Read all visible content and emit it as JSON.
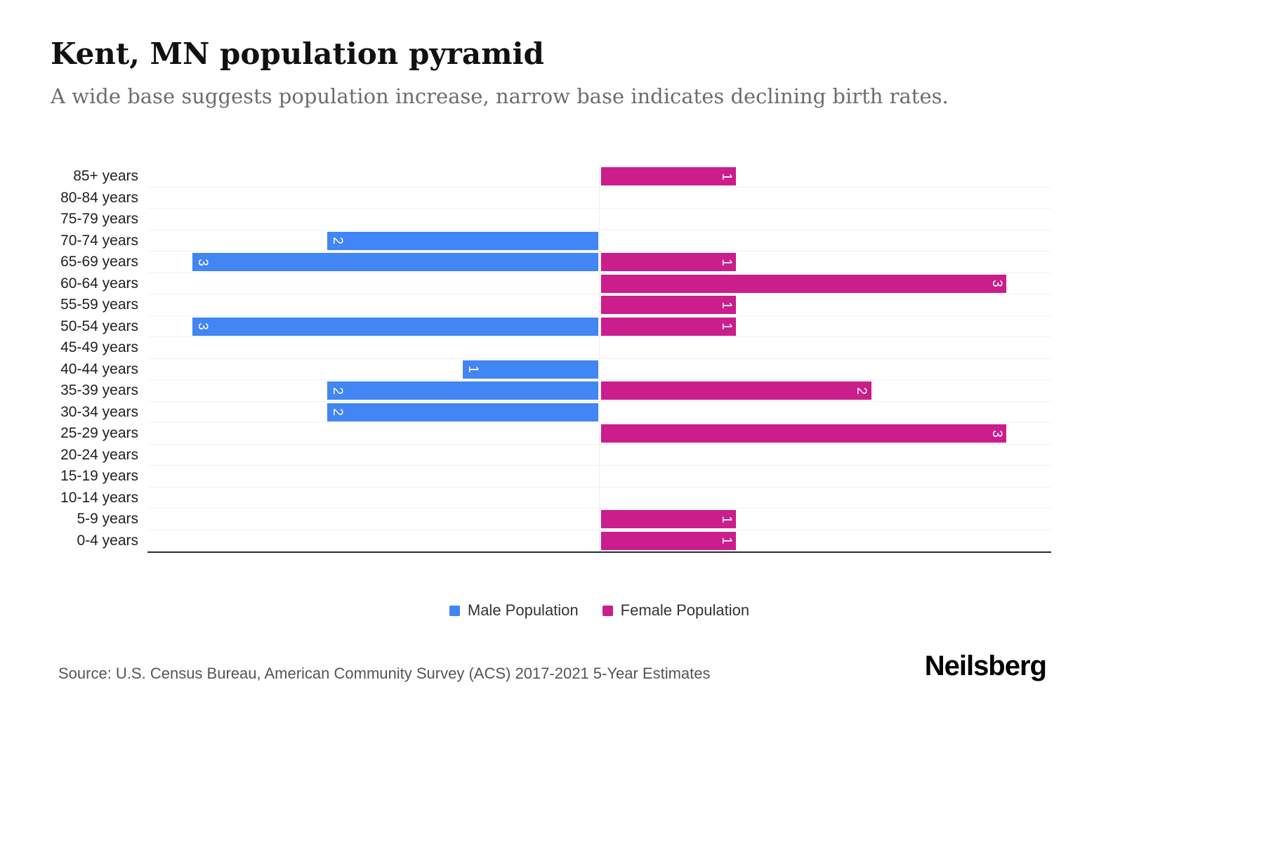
{
  "header": {
    "title": "Kent, MN population pyramid",
    "subtitle": "A wide base suggests population increase, narrow base indicates declining birth rates."
  },
  "chart_data": {
    "type": "bar",
    "variant": "population-pyramid",
    "orientation": "horizontal",
    "categories": [
      "85+ years",
      "80-84 years",
      "75-79 years",
      "70-74 years",
      "65-69 years",
      "60-64 years",
      "55-59 years",
      "50-54 years",
      "45-49 years",
      "40-44 years",
      "35-39 years",
      "30-34 years",
      "25-29 years",
      "20-24 years",
      "15-19 years",
      "10-14 years",
      "5-9 years",
      "0-4 years"
    ],
    "series": [
      {
        "name": "Male Population",
        "side": "left",
        "color": "#4285f4",
        "values": [
          0,
          0,
          0,
          2,
          3,
          0,
          0,
          3,
          0,
          1,
          2,
          2,
          0,
          0,
          0,
          0,
          0,
          0
        ]
      },
      {
        "name": "Female Population",
        "side": "right",
        "color": "#cb1d8c",
        "values": [
          1,
          0,
          0,
          0,
          1,
          3,
          1,
          1,
          0,
          0,
          2,
          0,
          3,
          0,
          0,
          0,
          1,
          1
        ]
      }
    ],
    "axis_max_per_side": 3.34,
    "grid": true,
    "bar_value_labels": "inside-far-end, rotated 90deg, white",
    "legend_position": "bottom-center"
  },
  "legend": {
    "male_label": "Male Population",
    "female_label": "Female Population"
  },
  "footer": {
    "source": "Source: U.S. Census Bureau, American Community Survey (ACS) 2017-2021 5-Year Estimates",
    "brand": "Neilsberg"
  },
  "colors": {
    "male": "#4285f4",
    "female": "#cb1d8c",
    "title": "#111111",
    "subtitle": "#6d6d6d",
    "gridline": "#f2f2f2",
    "axis_line": "#2e2e2e"
  }
}
